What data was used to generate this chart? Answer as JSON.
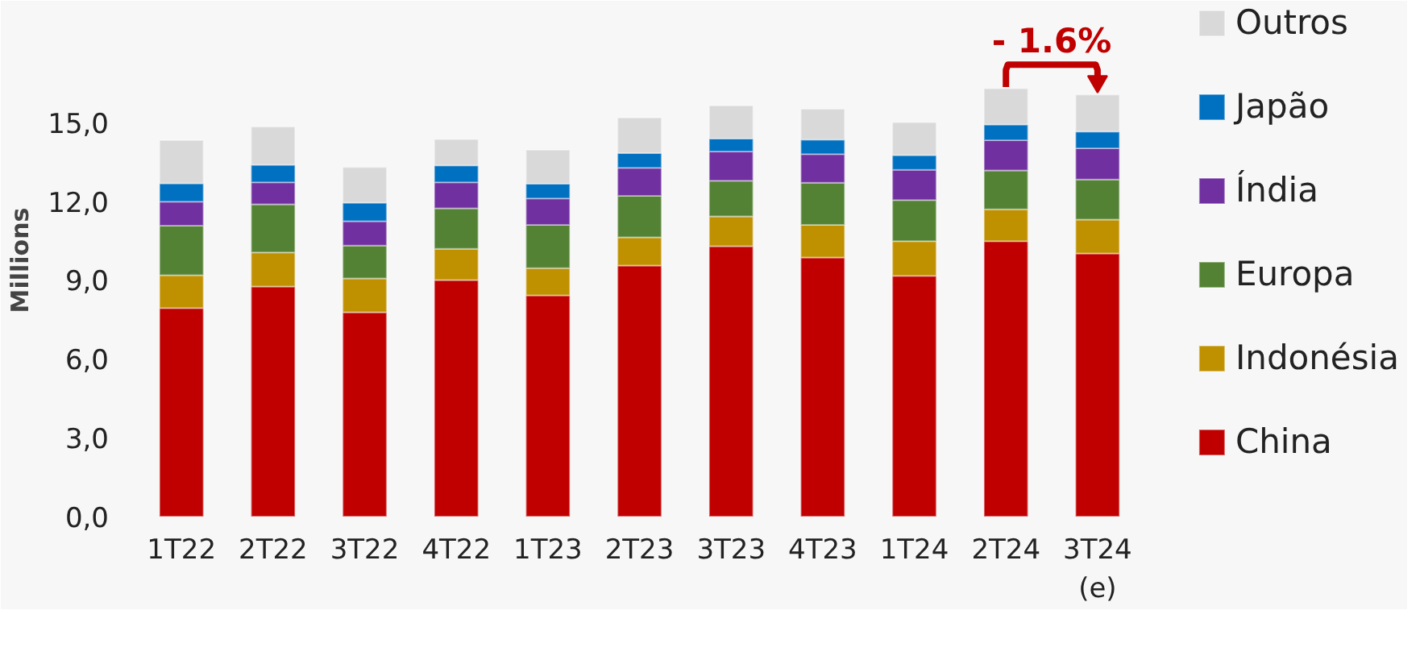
{
  "chart_data": {
    "type": "bar",
    "stacked": true,
    "ylabel": "Millions",
    "categories": [
      "1T22",
      "2T22",
      "3T22",
      "4T22",
      "1T23",
      "2T23",
      "3T23",
      "4T23",
      "1T24",
      "2T24",
      "3T24\n(e)"
    ],
    "series": [
      {
        "name": "China",
        "color": "#c00000",
        "values": [
          7.93,
          8.75,
          7.77,
          9.0,
          8.42,
          9.55,
          10.29,
          9.86,
          9.16,
          10.48,
          10.01
        ]
      },
      {
        "name": "Indonésia",
        "color": "#bf9000",
        "values": [
          1.25,
          1.3,
          1.29,
          1.19,
          1.03,
          1.07,
          1.13,
          1.24,
          1.32,
          1.21,
          1.29
        ]
      },
      {
        "name": "Europa",
        "color": "#548235",
        "values": [
          1.89,
          1.83,
          1.25,
          1.54,
          1.65,
          1.58,
          1.36,
          1.6,
          1.56,
          1.48,
          1.52
        ]
      },
      {
        "name": "Índia",
        "color": "#7030a0",
        "values": [
          0.91,
          0.84,
          0.93,
          0.99,
          1.0,
          1.07,
          1.11,
          1.09,
          1.15,
          1.15,
          1.19
        ]
      },
      {
        "name": "Japão",
        "color": "#0070c0",
        "values": [
          0.7,
          0.66,
          0.7,
          0.64,
          0.56,
          0.56,
          0.49,
          0.55,
          0.56,
          0.6,
          0.64
        ]
      },
      {
        "name": "Outros",
        "color": "#d9d9d9",
        "values": [
          1.64,
          1.45,
          1.35,
          1.0,
          1.29,
          1.35,
          1.26,
          1.17,
          1.25,
          1.37,
          1.4
        ]
      }
    ],
    "ylim": [
      0,
      19.5
    ],
    "yticks": [
      {
        "value": 0,
        "label": "0,0"
      },
      {
        "value": 3,
        "label": "3,0"
      },
      {
        "value": 6,
        "label": "6,0"
      },
      {
        "value": 9,
        "label": "9,0"
      },
      {
        "value": 12,
        "label": "12,0"
      },
      {
        "value": 15,
        "label": "15,0"
      }
    ],
    "grid": false,
    "legend": "right",
    "annotations": [
      "- 1.6%"
    ]
  }
}
